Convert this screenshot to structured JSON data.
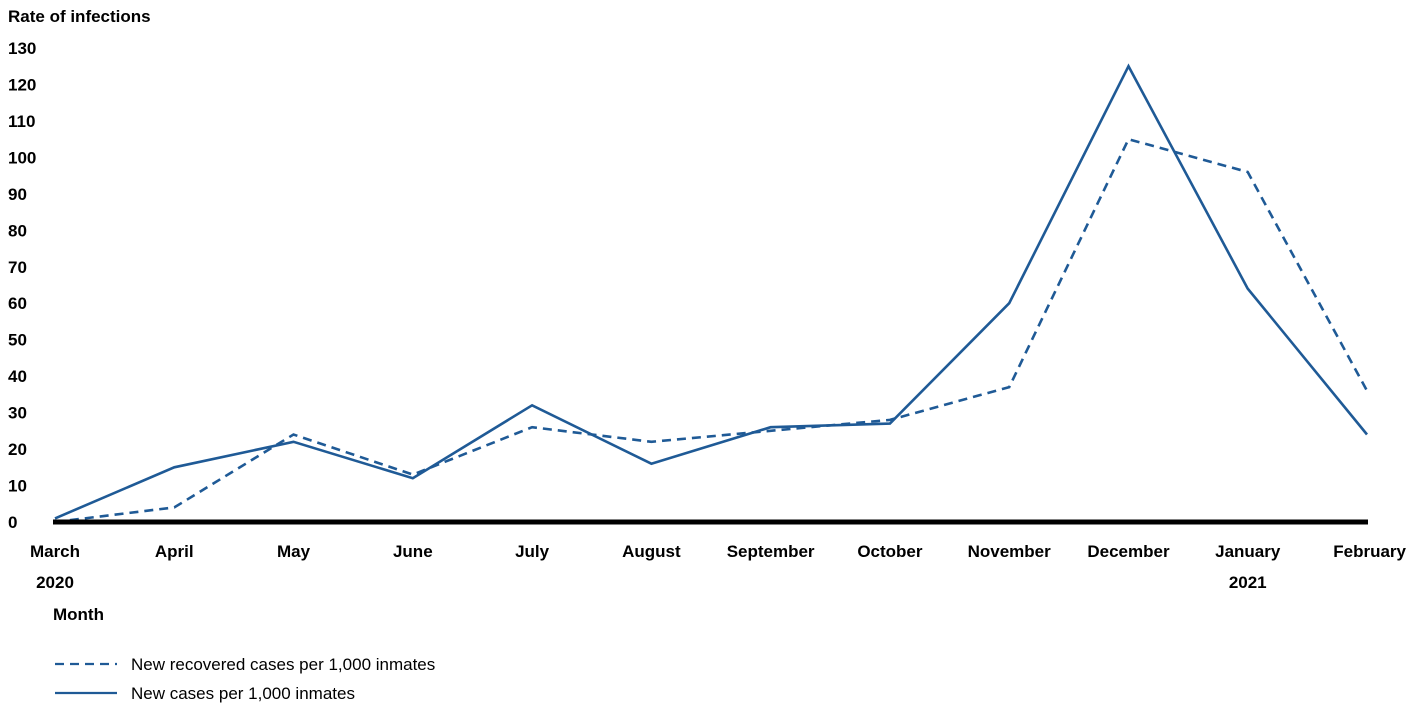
{
  "chart_data": {
    "type": "line",
    "ylabel": "Rate of infections",
    "xlabel": "Month",
    "categories": [
      "March",
      "April",
      "May",
      "June",
      "July",
      "August",
      "September",
      "October",
      "November",
      "December",
      "January",
      "February"
    ],
    "year_labels": [
      {
        "category_index": 0,
        "label": "2020"
      },
      {
        "category_index": 10,
        "label": "2021"
      }
    ],
    "ylim": [
      0,
      130
    ],
    "yticks": [
      0,
      10,
      20,
      30,
      40,
      50,
      60,
      70,
      80,
      90,
      100,
      110,
      120,
      130
    ],
    "grid": false,
    "legend_position": "bottom-left",
    "series": [
      {
        "name": "New recovered cases per 1,000 inmates",
        "style": "dashed",
        "color": "#1f5a96",
        "values": [
          0,
          4,
          24,
          13,
          26,
          22,
          25,
          28,
          37,
          105,
          96,
          36
        ]
      },
      {
        "name": "New cases per 1,000 inmates",
        "style": "solid",
        "color": "#1f5a96",
        "values": [
          1,
          15,
          22,
          12,
          32,
          16,
          26,
          27,
          60,
          125,
          64,
          24
        ]
      }
    ]
  }
}
